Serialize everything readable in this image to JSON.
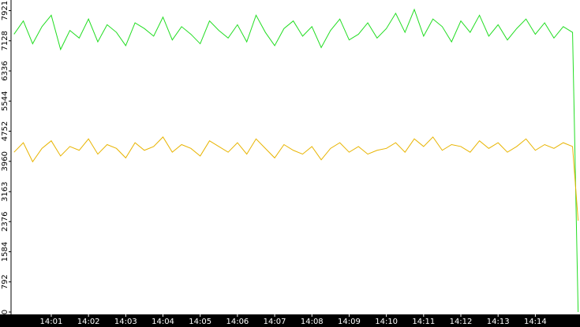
{
  "chart_data": {
    "type": "line",
    "x": [
      0,
      0.25,
      0.5,
      0.75,
      1,
      1.25,
      1.5,
      1.75,
      2,
      2.25,
      2.5,
      2.75,
      3,
      3.25,
      3.5,
      3.75,
      4,
      4.25,
      4.5,
      4.75,
      5,
      5.25,
      5.5,
      5.75,
      6,
      6.25,
      6.5,
      6.75,
      7,
      7.25,
      7.5,
      7.75,
      8,
      8.25,
      8.5,
      8.75,
      9,
      9.25,
      9.5,
      9.75,
      10,
      10.25,
      10.5,
      10.75,
      11,
      11.25,
      11.5,
      11.75,
      12,
      12.25,
      12.5,
      12.75,
      13,
      13.25,
      13.5,
      13.75,
      14,
      14.25,
      14.5,
      14.75,
      15,
      15.15
    ],
    "series": [
      {
        "color": "#22dd22",
        "values": [
          7300,
          7650,
          7050,
          7500,
          7800,
          6900,
          7400,
          7200,
          7700,
          7100,
          7550,
          7350,
          7000,
          7600,
          7450,
          7250,
          7750,
          7150,
          7500,
          7300,
          7050,
          7650,
          7400,
          7200,
          7550,
          7100,
          7800,
          7350,
          7000,
          7450,
          7650,
          7250,
          7500,
          6950,
          7400,
          7700,
          7150,
          7300,
          7600,
          7200,
          7450,
          7850,
          7350,
          7950,
          7250,
          7700,
          7500,
          7100,
          7650,
          7350,
          7800,
          7250,
          7550,
          7150,
          7450,
          7700,
          7300,
          7600,
          7200,
          7500,
          7350,
          0
        ]
      },
      {
        "color": "#e8b400",
        "values": [
          4200,
          4450,
          3950,
          4300,
          4500,
          4100,
          4350,
          4250,
          4550,
          4150,
          4400,
          4300,
          4050,
          4450,
          4250,
          4350,
          4600,
          4200,
          4400,
          4300,
          4100,
          4500,
          4350,
          4200,
          4450,
          4150,
          4550,
          4300,
          4050,
          4400,
          4250,
          4150,
          4350,
          4000,
          4300,
          4450,
          4200,
          4350,
          4150,
          4250,
          4300,
          4450,
          4200,
          4550,
          4350,
          4600,
          4250,
          4400,
          4350,
          4200,
          4500,
          4300,
          4450,
          4200,
          4350,
          4550,
          4250,
          4400,
          4300,
          4450,
          4350,
          2400
        ]
      }
    ],
    "xlim": [
      -0.08,
      15.2
    ],
    "xticks": [
      {
        "value": 1,
        "label": "14:01"
      },
      {
        "value": 2,
        "label": "14:02"
      },
      {
        "value": 3,
        "label": "14:03"
      },
      {
        "value": 4,
        "label": "14:04"
      },
      {
        "value": 5,
        "label": "14:05"
      },
      {
        "value": 6,
        "label": "14:06"
      },
      {
        "value": 7,
        "label": "14:07"
      },
      {
        "value": 8,
        "label": "14:08"
      },
      {
        "value": 9,
        "label": "14:09"
      },
      {
        "value": 10,
        "label": "14:10"
      },
      {
        "value": 11,
        "label": "14:11"
      },
      {
        "value": 12,
        "label": "14:12"
      },
      {
        "value": 13,
        "label": "14:13"
      },
      {
        "value": 14,
        "label": "14:14"
      }
    ],
    "ylim": [
      0,
      8200
    ],
    "yticks": [
      0,
      792,
      1584,
      2376,
      3163,
      3960,
      4752,
      5544,
      6336,
      7128,
      7921
    ]
  }
}
